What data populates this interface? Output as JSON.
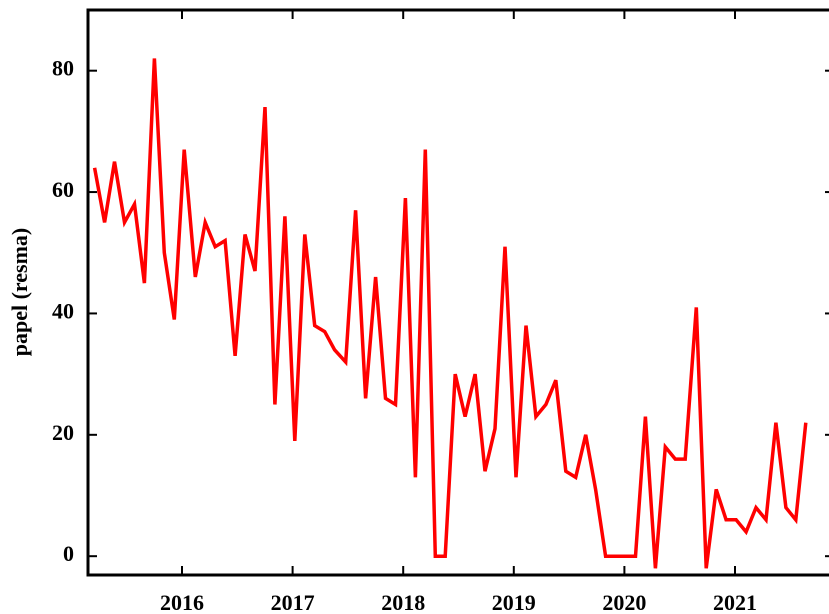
{
  "chart_data": {
    "type": "line",
    "y_label": "papel (resma)",
    "x": [
      2015.21,
      2015.3,
      2015.39,
      2015.48,
      2015.57,
      2015.66,
      2015.75,
      2015.84,
      2015.93,
      2016.02,
      2016.12,
      2016.21,
      2016.3,
      2016.39,
      2016.48,
      2016.57,
      2016.66,
      2016.75,
      2016.84,
      2016.93,
      2017.02,
      2017.11,
      2017.2,
      2017.29,
      2017.38,
      2017.48,
      2017.57,
      2017.66,
      2017.75,
      2017.84,
      2017.93,
      2018.02,
      2018.11,
      2018.2,
      2018.29,
      2018.38,
      2018.47,
      2018.56,
      2018.65,
      2018.74,
      2018.83,
      2018.92,
      2019.02,
      2019.11,
      2019.2,
      2019.29,
      2019.38,
      2019.47,
      2019.56,
      2019.65,
      2019.74,
      2019.83,
      2019.92,
      2020.01,
      2020.1,
      2020.19,
      2020.28,
      2020.37,
      2020.46,
      2020.55,
      2020.65,
      2020.74,
      2020.83,
      2020.92,
      2021.01,
      2021.1,
      2021.19,
      2021.28,
      2021.37,
      2021.46,
      2021.55,
      2021.64
    ],
    "series": [
      {
        "name": "papel",
        "color": "#ff0000",
        "values": [
          64,
          55,
          65,
          55,
          58,
          45,
          82,
          50,
          39,
          67,
          46,
          55,
          51,
          52,
          33,
          53,
          47,
          74,
          25,
          56,
          19,
          53,
          38,
          37,
          34,
          32,
          57,
          26,
          46,
          26,
          25,
          59,
          13,
          67,
          0,
          0,
          30,
          23,
          30,
          14,
          21,
          51,
          13,
          38,
          23,
          25,
          29,
          14,
          13,
          20,
          11,
          0,
          0,
          0,
          0,
          23,
          -2,
          18,
          16,
          16,
          41,
          -2,
          11,
          6,
          6,
          4,
          8,
          6,
          22,
          8,
          6,
          22
        ]
      }
    ],
    "xlim": [
      2015.15,
      2021.85
    ],
    "xticks": [
      2016,
      2017,
      2018,
      2019,
      2020,
      2021
    ],
    "ylim": [
      -3.1,
      90
    ],
    "yticks": [
      0,
      20,
      40,
      60,
      80
    ]
  }
}
